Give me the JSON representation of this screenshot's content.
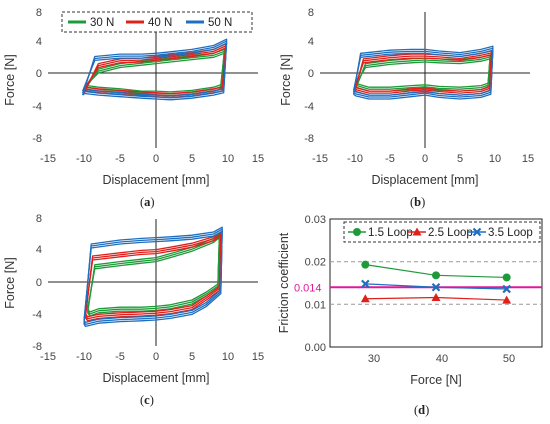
{
  "colors": {
    "n30": "#1f9a3a",
    "n40": "#e0201b",
    "n50": "#1f6fc0",
    "loop15": "#1f9a3a",
    "loop25": "#e0201b",
    "loop35": "#1f6fc0",
    "ref_line": "#e0189a",
    "axis": "#222222",
    "grid": "#9a9a9a"
  },
  "chart_data": [
    {
      "id": "a",
      "type": "line",
      "panel_label": "a",
      "xlabel": "Displacement [mm]",
      "ylabel": "Force [N]",
      "xlim": [
        -15,
        15
      ],
      "ylim": [
        -8,
        8
      ],
      "xticks": [
        -15,
        -10,
        -5,
        0,
        5,
        10,
        15
      ],
      "yticks": [
        -8,
        -4,
        0,
        4,
        8
      ],
      "legend": {
        "position": "top-left",
        "entries": [
          "30 N",
          "40 N",
          "50 N"
        ]
      },
      "series": [
        {
          "name": "30 N",
          "color_key": "n30",
          "loops": 3,
          "x": [
            -10,
            -8,
            -5,
            -2,
            0,
            2,
            5,
            8,
            9.5,
            9,
            8,
            5,
            2,
            0,
            -2,
            -5,
            -8,
            -9.5,
            -10
          ],
          "y": [
            -1.8,
            0.5,
            1.2,
            1.5,
            1.7,
            1.9,
            2.2,
            2.5,
            3.0,
            -1.5,
            -1.8,
            -2.2,
            -2.4,
            -2.3,
            -2.3,
            -2.0,
            -1.8,
            -1.6,
            -1.8
          ]
        },
        {
          "name": "40 N",
          "color_key": "n40",
          "loops": 3,
          "x": [
            -10,
            -8,
            -5,
            -2,
            0,
            2,
            5,
            8,
            9.7,
            9.2,
            8,
            5,
            2,
            0,
            -2,
            -5,
            -8,
            -9.7,
            -10
          ],
          "y": [
            -2.0,
            1.2,
            1.8,
            1.9,
            2.1,
            2.3,
            2.6,
            3.0,
            3.7,
            -1.8,
            -2.0,
            -2.4,
            -2.6,
            -2.5,
            -2.4,
            -2.2,
            -2.0,
            -1.8,
            -2.0
          ]
        },
        {
          "name": "50 N",
          "color_key": "n50",
          "loops": 3,
          "x": [
            -10.2,
            -8.5,
            -5,
            -2,
            0,
            2,
            5,
            8,
            9.8,
            9.4,
            8,
            5,
            2,
            0,
            -2,
            -5,
            -8,
            -9.9,
            -10.2
          ],
          "y": [
            -2.3,
            2.1,
            2.4,
            2.4,
            2.5,
            2.7,
            3.0,
            3.5,
            4.3,
            -2.0,
            -2.3,
            -2.7,
            -2.9,
            -2.8,
            -2.7,
            -2.5,
            -2.3,
            -2.1,
            -2.3
          ]
        }
      ]
    },
    {
      "id": "b",
      "type": "line",
      "panel_label": "b",
      "xlabel": "Displacement [mm]",
      "ylabel": "Force [N]",
      "xlim": [
        -15,
        15
      ],
      "ylim": [
        -8,
        8
      ],
      "xticks": [
        -15,
        -10,
        -5,
        0,
        5,
        10,
        15
      ],
      "yticks": [
        -8,
        -4,
        0,
        4,
        8
      ],
      "series": [
        {
          "name": "30 N",
          "color_key": "n30",
          "loops": 3,
          "x": [
            -9.8,
            -8.5,
            -5,
            -2,
            0,
            2,
            5,
            8,
            9.3,
            9.0,
            8,
            5,
            2,
            0,
            -2,
            -5,
            -8,
            -9.5,
            -9.8
          ],
          "y": [
            -1.3,
            1.2,
            1.6,
            1.8,
            1.9,
            1.8,
            1.7,
            2.0,
            2.3,
            -1.3,
            -1.6,
            -1.8,
            -1.7,
            -1.5,
            -1.6,
            -1.8,
            -1.8,
            -1.4,
            -1.3
          ]
        },
        {
          "name": "40 N",
          "color_key": "n40",
          "loops": 3,
          "x": [
            -10,
            -8.8,
            -5,
            -2,
            0,
            2,
            5,
            8,
            9.5,
            9.2,
            8,
            5,
            2,
            0,
            -2,
            -5,
            -8,
            -9.7,
            -10
          ],
          "y": [
            -1.7,
            1.8,
            2.2,
            2.4,
            2.4,
            2.3,
            2.1,
            2.5,
            2.8,
            -1.7,
            -2.1,
            -2.3,
            -2.1,
            -1.9,
            -2.0,
            -2.3,
            -2.3,
            -1.9,
            -1.7
          ]
        },
        {
          "name": "50 N",
          "color_key": "n50",
          "loops": 3,
          "x": [
            -10.2,
            -9.2,
            -5,
            -2,
            0,
            2,
            5,
            8,
            9.7,
            9.4,
            8,
            5,
            2,
            0,
            -2,
            -5,
            -8,
            -9.9,
            -10.2
          ],
          "y": [
            -2.2,
            2.5,
            2.9,
            3.0,
            3.0,
            2.8,
            2.6,
            3.0,
            3.4,
            -2.2,
            -2.6,
            -2.8,
            -2.6,
            -2.3,
            -2.5,
            -2.8,
            -2.8,
            -2.4,
            -2.2
          ]
        }
      ]
    },
    {
      "id": "c",
      "type": "line",
      "panel_label": "c",
      "xlabel": "Displacement [mm]",
      "ylabel": "Force [N]",
      "xlim": [
        -15,
        15
      ],
      "ylim": [
        -8,
        8
      ],
      "xticks": [
        -15,
        -10,
        -5,
        0,
        5,
        10,
        15
      ],
      "yticks": [
        -8,
        -4,
        0,
        4,
        8
      ],
      "series": [
        {
          "name": "30 N",
          "color_key": "n30",
          "loops": 3,
          "x": [
            -9.5,
            -8.5,
            -5,
            -2,
            0,
            2,
            5,
            8,
            8.8,
            8.6,
            7,
            5,
            2,
            0,
            -2,
            -5,
            -8,
            -9.2,
            -9.5
          ],
          "y": [
            -3.6,
            1.9,
            2.3,
            2.6,
            2.8,
            3.3,
            4.1,
            5.2,
            5.8,
            -0.5,
            -1.5,
            -2.5,
            -3.1,
            -3.3,
            -3.4,
            -3.4,
            -3.6,
            -4.0,
            -3.6
          ]
        },
        {
          "name": "40 N",
          "color_key": "n40",
          "loops": 3,
          "x": [
            -9.8,
            -8.8,
            -5,
            -2,
            0,
            2,
            5,
            8,
            9.0,
            8.8,
            7,
            5,
            2,
            0,
            -2,
            -5,
            -8,
            -9.5,
            -9.8
          ],
          "y": [
            -4.2,
            3.0,
            3.4,
            3.7,
            3.8,
            4.1,
            4.6,
            5.4,
            6.0,
            -0.8,
            -2.0,
            -3.2,
            -3.7,
            -3.9,
            -4.0,
            -4.1,
            -4.3,
            -4.6,
            -4.2
          ]
        },
        {
          "name": "50 N",
          "color_key": "n50",
          "loops": 3,
          "x": [
            -10,
            -9.0,
            -5,
            -2,
            0,
            2,
            5,
            8,
            9.2,
            9.0,
            7,
            5,
            2,
            0,
            -2,
            -5,
            -8,
            -9.8,
            -10
          ],
          "y": [
            -5.0,
            4.5,
            5.0,
            5.2,
            5.3,
            5.4,
            5.6,
            6.0,
            6.6,
            -1.2,
            -2.8,
            -3.8,
            -4.3,
            -4.5,
            -4.6,
            -4.7,
            -4.9,
            -5.3,
            -5.0
          ]
        }
      ]
    },
    {
      "id": "d",
      "type": "scatter",
      "panel_label": "d",
      "xlabel": "Force [N]",
      "ylabel": "Friction coefficient",
      "xlim": [
        25,
        55
      ],
      "ylim": [
        0.0,
        0.03
      ],
      "xticks": [
        30,
        40,
        50
      ],
      "yticks": [
        0.0,
        0.01,
        0.02,
        0.03
      ],
      "ytick_labels": [
        "0.00",
        "0.01",
        "0.02",
        "0.03"
      ],
      "grid": "dashed horizontal",
      "reference_line": {
        "value": 0.014,
        "label": "0.014"
      },
      "legend": {
        "position": "top",
        "entries": [
          "1.5 Loop",
          "2.5 Loop",
          "3.5 Loop"
        ]
      },
      "series": [
        {
          "name": "1.5 Loop",
          "color_key": "loop15",
          "marker": "circle",
          "x": [
            30,
            40,
            50
          ],
          "y": [
            0.0193,
            0.0168,
            0.0163
          ]
        },
        {
          "name": "2.5 Loop",
          "color_key": "loop25",
          "marker": "triangle",
          "x": [
            30,
            40,
            50
          ],
          "y": [
            0.0113,
            0.0116,
            0.011
          ]
        },
        {
          "name": "3.5 Loop",
          "color_key": "loop35",
          "marker": "x",
          "x": [
            30,
            40,
            50
          ],
          "y": [
            0.0148,
            0.014,
            0.0136
          ]
        }
      ]
    }
  ]
}
